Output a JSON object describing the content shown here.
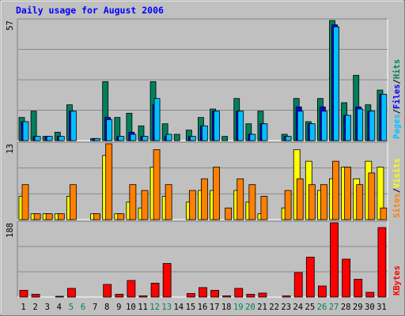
{
  "title": "Daily usage for August 2006",
  "colors": {
    "background": "#c0c0c0",
    "frame_light": "#ffffff",
    "frame_dark": "#808080",
    "title_text": "#0000ff",
    "grid": "#8a8a8a",
    "hits": "#00805c",
    "files": "#0000ff",
    "pages": "#00c0ff",
    "visits": "#ffff00",
    "sites": "#ff8000",
    "kbytes": "#ff0000",
    "weekend_day": "#00805c",
    "day_text": "#000000"
  },
  "chart_data": [
    {
      "type": "bar",
      "panel": "hits-files-pages",
      "ymax_label": "57",
      "ylim": [
        0,
        57
      ],
      "axis_label_parts": [
        "Pages",
        "/",
        "Files",
        "/",
        "Hits"
      ],
      "categories": [
        "1",
        "2",
        "3",
        "4",
        "5",
        "6",
        "7",
        "8",
        "9",
        "10",
        "11",
        "12",
        "13",
        "14",
        "15",
        "16",
        "17",
        "18",
        "19",
        "20",
        "21",
        "22",
        "23",
        "24",
        "25",
        "26",
        "27",
        "28",
        "29",
        "30",
        "31"
      ],
      "weekend_days": [
        5,
        6,
        12,
        13,
        19,
        20,
        26,
        27
      ],
      "series": [
        {
          "name": "Hits",
          "values": [
            11,
            14,
            2,
            4,
            17,
            0,
            1,
            28,
            11,
            13,
            7,
            28,
            8,
            3,
            5,
            11,
            15,
            2,
            20,
            8,
            14,
            0,
            3,
            20,
            9,
            20,
            57,
            18,
            31,
            17,
            24
          ]
        },
        {
          "name": "Files",
          "values": [
            9,
            2,
            2,
            2,
            14,
            0,
            1,
            11,
            2,
            4,
            2,
            17,
            2,
            0,
            2,
            7,
            14,
            0,
            14,
            3,
            8,
            0,
            2,
            16,
            8,
            16,
            55,
            12,
            16,
            14,
            22
          ]
        },
        {
          "name": "Pages",
          "values": [
            9,
            2,
            2,
            2,
            14,
            0,
            1,
            10,
            2,
            3,
            2,
            20,
            3,
            0,
            2,
            7,
            14,
            0,
            14,
            3,
            8,
            0,
            2,
            14,
            8,
            14,
            54,
            12,
            15,
            14,
            22
          ]
        }
      ]
    },
    {
      "type": "bar",
      "panel": "visits-sites",
      "ymax_label": "13",
      "ylim": [
        0,
        13
      ],
      "axis_label_parts": [
        "Sites",
        "/",
        "Visits"
      ],
      "categories": [
        "1",
        "2",
        "3",
        "4",
        "5",
        "6",
        "7",
        "8",
        "9",
        "10",
        "11",
        "12",
        "13",
        "14",
        "15",
        "16",
        "17",
        "18",
        "19",
        "20",
        "21",
        "22",
        "23",
        "24",
        "25",
        "26",
        "27",
        "28",
        "29",
        "30",
        "31"
      ],
      "series": [
        {
          "name": "Visits",
          "values": [
            4,
            1,
            1,
            1,
            4,
            0,
            1,
            11,
            1,
            3,
            2,
            9,
            4,
            0,
            3,
            5,
            5,
            0,
            5,
            3,
            1,
            0,
            2,
            12,
            10,
            5,
            7,
            9,
            7,
            10,
            9
          ]
        },
        {
          "name": "Sites",
          "values": [
            6,
            1,
            1,
            1,
            6,
            0,
            1,
            13,
            1,
            6,
            5,
            12,
            6,
            0,
            5,
            7,
            9,
            2,
            7,
            6,
            4,
            0,
            5,
            7,
            6,
            6,
            10,
            9,
            6,
            8,
            2
          ]
        }
      ]
    },
    {
      "type": "bar",
      "panel": "kbytes",
      "ymax_label": "188",
      "ylim": [
        0,
        188
      ],
      "axis_label_parts": [
        "KBytes"
      ],
      "categories": [
        "1",
        "2",
        "3",
        "4",
        "5",
        "6",
        "7",
        "8",
        "9",
        "10",
        "11",
        "12",
        "13",
        "14",
        "15",
        "16",
        "17",
        "18",
        "19",
        "20",
        "21",
        "22",
        "23",
        "24",
        "25",
        "26",
        "27",
        "28",
        "29",
        "30",
        "31"
      ],
      "series": [
        {
          "name": "KBytes",
          "values": [
            17,
            7,
            0,
            2,
            22,
            0,
            0,
            32,
            7,
            42,
            3,
            35,
            85,
            0,
            9,
            24,
            17,
            3,
            22,
            7,
            10,
            0,
            3,
            62,
            101,
            28,
            188,
            96,
            45,
            12,
            176
          ]
        }
      ]
    }
  ]
}
